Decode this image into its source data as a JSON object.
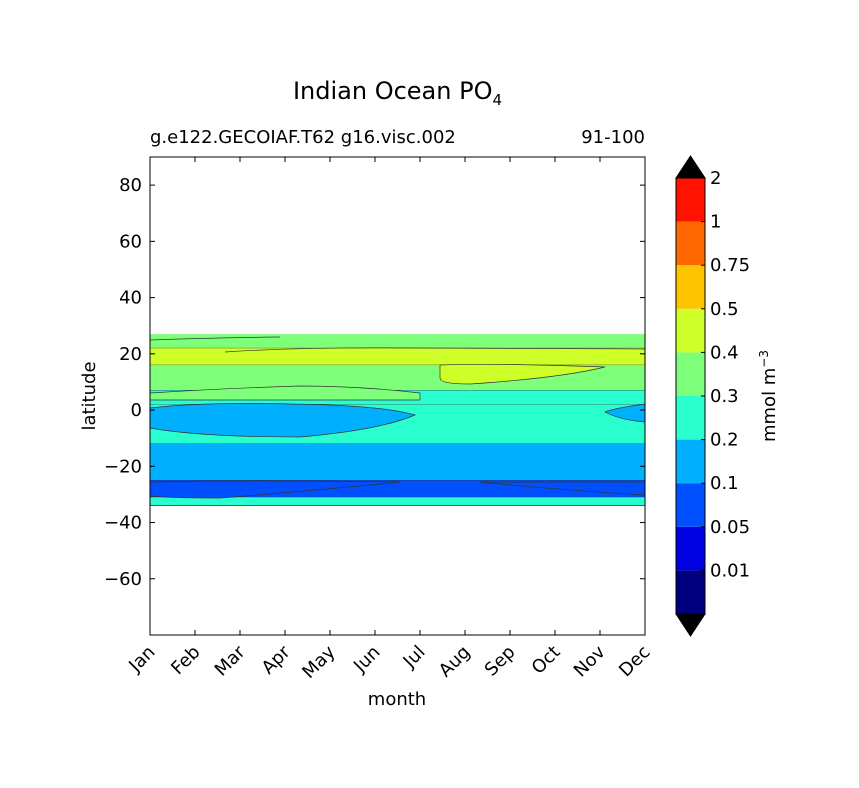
{
  "chart_data": {
    "type": "heatmap",
    "title": "Indian Ocean PO",
    "title_subscript": "4",
    "subtitle_left": "g.e122.GECOIAF.T62 g16.visc.002",
    "subtitle_right": "91-100",
    "xlabel": "month",
    "ylabel": "latitude",
    "x_categories": [
      "Jan",
      "Feb",
      "Mar",
      "Apr",
      "May",
      "Jun",
      "Jul",
      "Aug",
      "Sep",
      "Oct",
      "Nov",
      "Dec"
    ],
    "ylim": [
      -80,
      90
    ],
    "y_ticks": [
      "80",
      "60",
      "40",
      "20",
      "0",
      "−20",
      "−40",
      "−60"
    ],
    "y_tick_values": [
      80,
      60,
      40,
      20,
      0,
      -20,
      -40,
      -60
    ],
    "data_lat_range": [
      -34,
      27
    ],
    "colorbar": {
      "label": "mmol m",
      "label_superscript": "−3",
      "levels": [
        "0.01",
        "0.05",
        "0.1",
        "0.2",
        "0.3",
        "0.4",
        "0.5",
        "0.75",
        "1",
        "2"
      ],
      "colors": [
        "#00007f",
        "#0000e0",
        "#0050ff",
        "#00b0ff",
        "#29ffce",
        "#7dff7a",
        "#ceff29",
        "#ffc400",
        "#ff6800",
        "#ff1300",
        "#7f0000"
      ],
      "extend": "both"
    },
    "bands": [
      {
        "lat_top": 27,
        "lat_bottom": 22,
        "level_index": 5
      },
      {
        "lat_top": 22,
        "lat_bottom": 16,
        "level_index": 6
      },
      {
        "lat_top": 16,
        "lat_bottom": 7,
        "level_index": 5
      },
      {
        "lat_top": 7,
        "lat_bottom": 2,
        "level_index": 4
      },
      {
        "lat_top": 2,
        "lat_bottom": -12,
        "level_index": 4
      },
      {
        "lat_top": -12,
        "lat_bottom": -25,
        "level_index": 3
      },
      {
        "lat_top": -25,
        "lat_bottom": -31,
        "level_index": 2
      },
      {
        "lat_top": -31,
        "lat_bottom": -34,
        "level_index": 4
      }
    ]
  }
}
